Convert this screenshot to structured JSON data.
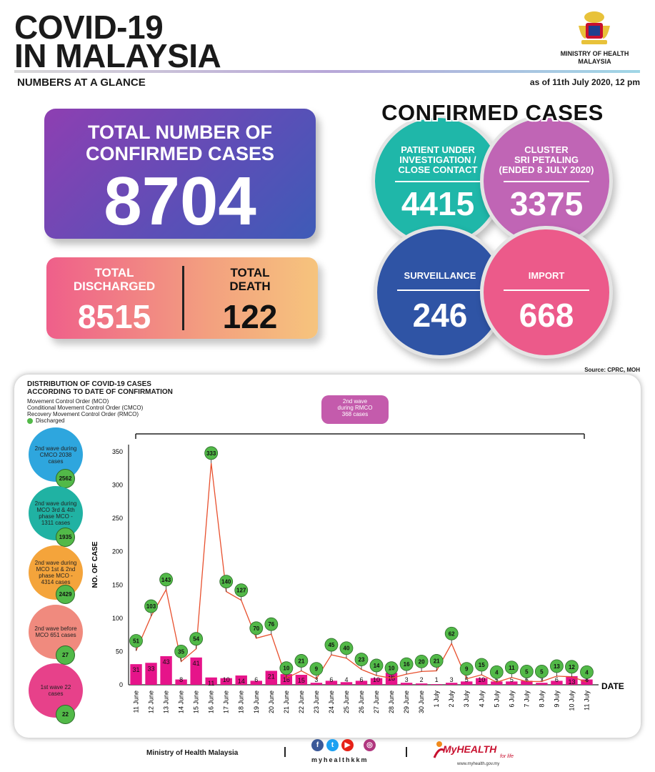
{
  "header": {
    "title_line1": "COVID-19",
    "title_line2": "IN MALAYSIA",
    "ministry_line1": "MINISTRY OF HEALTH",
    "ministry_line2": "MALAYSIA",
    "subtitle": "NUMBERS AT A GLANCE",
    "as_of": "as of 11th July 2020, 12 pm"
  },
  "total": {
    "label_line1": "TOTAL NUMBER OF",
    "label_line2": "CONFIRMED CASES",
    "value": "8704"
  },
  "discharged": {
    "label_line1": "TOTAL",
    "label_line2": "DISCHARGED",
    "value": "8515"
  },
  "death": {
    "label_line1": "TOTAL",
    "label_line2": "DEATH",
    "value": "122"
  },
  "confirmed_cases": {
    "title": "CONFIRMED CASES",
    "pui": {
      "line1": "PATIENT UNDER",
      "line2": "INVESTIGATION /",
      "line3": "CLOSE CONTACT",
      "value": "4415",
      "color": "#1fb7a9"
    },
    "cluster": {
      "line1": "CLUSTER",
      "line2": "SRI PETALING",
      "line3": "(ENDED 8 JULY 2020)",
      "value": "3375",
      "color": "#c065b5"
    },
    "surveillance": {
      "line1": "SURVEILLANCE",
      "value": "246",
      "color": "#2f54a5"
    },
    "import": {
      "line1": "IMPORT",
      "value": "668",
      "color": "#ec5a8a"
    }
  },
  "source": "Source: CPRC, MOH",
  "panel": {
    "title_line1": "DISTRIBUTION OF COVID-19 CASES",
    "title_line2": "ACCORDING TO DATE OF CONFIRMATION",
    "legend_mco": "Movement Control Order (MCO)",
    "legend_cmco": "Conditional Movement Control Order (CMCO)",
    "legend_rmco": "Recovery Movement Control Order (RMCO)",
    "legend_discharged": "Discharged",
    "rmco_box_line1": "2nd wave",
    "rmco_box_line2": "during RMCO",
    "rmco_box_line3": "368 cases"
  },
  "waves": [
    {
      "label": "2nd wave during CMCO 2038 cases",
      "discharged": "2562",
      "color": "#2ea6de"
    },
    {
      "label": "2nd wave during MCO 3rd & 4th phase MCO - 1311 cases",
      "discharged": "1935",
      "color": "#20b2a3"
    },
    {
      "label": "2nd wave during MCO 1st & 2nd phase MCO - 4314 cases",
      "discharged": "2429",
      "color": "#f4a43b"
    },
    {
      "label": "2nd wave before MCO 651 cases",
      "discharged": "27",
      "color": "#f08a7e"
    },
    {
      "label": "1st wave 22 cases",
      "discharged": "22",
      "color": "#e7418a"
    }
  ],
  "chart_data": {
    "type": "bar",
    "ylabel": "NO. OF CASE",
    "xlabel": "DATE",
    "ylim": [
      0,
      350
    ],
    "yticks": [
      0,
      50,
      100,
      150,
      200,
      250,
      300,
      350
    ],
    "categories": [
      "11 June",
      "12 June",
      "13 June",
      "14 June",
      "15 June",
      "16 June",
      "17 June",
      "18 June",
      "19 June",
      "20 June",
      "21 June",
      "22 June",
      "23 June",
      "24 June",
      "25 June",
      "26 June",
      "27 June",
      "28 June",
      "29 June",
      "30 June",
      "1 July",
      "2 July",
      "3 July",
      "4 July",
      "5 July",
      "6 July",
      "7 July",
      "8 July",
      "9 July",
      "10 July",
      "11 July"
    ],
    "series": [
      {
        "name": "Cases",
        "type": "bar",
        "color": "#e6148a",
        "values": [
          31,
          33,
          43,
          8,
          41,
          11,
          10,
          14,
          6,
          21,
          16,
          15,
          3,
          6,
          4,
          6,
          10,
          18,
          3,
          2,
          1,
          3,
          5,
          10,
          5,
          5,
          6,
          3,
          6,
          13,
          8
        ]
      },
      {
        "name": "Discharged",
        "type": "line",
        "color": "#e8502e",
        "values": [
          51,
          103,
          143,
          35,
          54,
          333,
          140,
          127,
          70,
          76,
          10,
          21,
          9,
          45,
          40,
          23,
          14,
          10,
          16,
          20,
          21,
          62,
          9,
          15,
          4,
          11,
          5,
          5,
          13,
          12,
          4
        ]
      }
    ]
  },
  "footer": {
    "ministry": "Ministry of Health Malaysia",
    "handle": "myhealthkkm",
    "brand": "MyHEALTH",
    "tagline": "for life",
    "url": "www.myhealth.gov.my"
  }
}
